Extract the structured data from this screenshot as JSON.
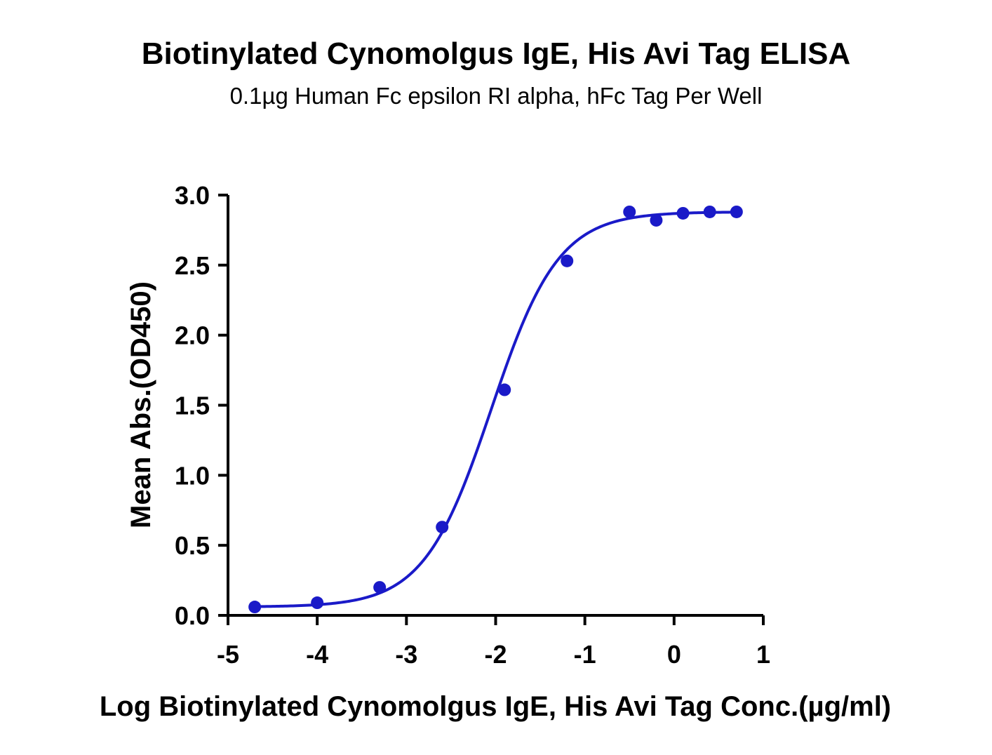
{
  "chart_data": {
    "type": "scatter",
    "title": "Biotinylated Cynomolgus IgE, His Avi Tag ELISA",
    "subtitle": "0.1µg Human Fc epsilon RI alpha, hFc Tag Per Well",
    "xlabel": "Log Biotinylated Cynomolgus IgE, His Avi Tag Conc.(µg/ml)",
    "ylabel": "Mean Abs.(OD450)",
    "xlim": [
      -5,
      1
    ],
    "ylim": [
      0,
      3.0
    ],
    "xticks": [
      "-5",
      "-4",
      "-3",
      "-2",
      "-1",
      "0",
      "1"
    ],
    "yticks": [
      "0.0",
      "0.5",
      "1.0",
      "1.5",
      "2.0",
      "2.5",
      "3.0"
    ],
    "grid": false,
    "series": [
      {
        "color": "#1a1ac8",
        "x": [
          -4.7,
          -4.0,
          -3.3,
          -2.6,
          -1.9,
          -1.2,
          -0.5,
          -0.2,
          0.1,
          0.4,
          0.7
        ],
        "y": [
          0.06,
          0.09,
          0.2,
          0.63,
          1.61,
          2.53,
          2.88,
          2.82,
          2.87,
          2.88,
          2.88
        ],
        "fit": "sigmoidal 4PL"
      }
    ]
  }
}
